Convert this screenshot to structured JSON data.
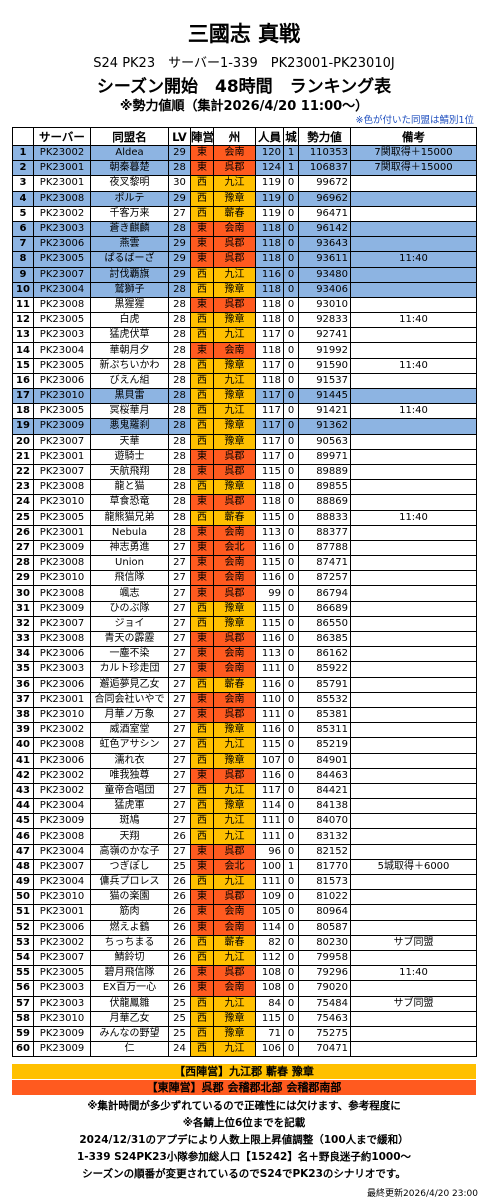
{
  "header": {
    "title": "三國志 真戦",
    "subtitle": "S24 PK23　サーバー1-339　PK23001-PK23010J",
    "heading": "シーズン開始　48時間　ランキング表",
    "order_note": "※勢力値順（集計2026/4/20 11:00～）",
    "color_note": "※色が付いた同盟は鯖別1位"
  },
  "camp_colors": {
    "東": "#ff5a1f",
    "西": "#ffc000"
  },
  "highlight_color": "#8db4e2",
  "table": {
    "columns": [
      "",
      "サーバー",
      "同盟名",
      "LV",
      "陣営",
      "州",
      "人員",
      "城",
      "勢力値",
      "備考"
    ],
    "rows": [
      {
        "cells": [
          1,
          "PK23002",
          "Aldea",
          29,
          "東",
          "会南",
          120,
          1,
          110353,
          "7関取得＋15000"
        ],
        "highlight": true
      },
      {
        "cells": [
          2,
          "PK23001",
          "朝秦暮楚",
          28,
          "東",
          "呉郡",
          124,
          1,
          106837,
          "7関取得＋15000"
        ],
        "highlight": true
      },
      {
        "cells": [
          3,
          "PK23001",
          "夜叉黎明",
          30,
          "西",
          "九江",
          119,
          0,
          99672
        ]
      },
      {
        "cells": [
          4,
          "PK23008",
          "ポルテ",
          29,
          "西",
          "豫章",
          119,
          0,
          96962
        ],
        "highlight": true
      },
      {
        "cells": [
          5,
          "PK23002",
          "千客万来",
          27,
          "西",
          "蘄春",
          119,
          0,
          96471
        ]
      },
      {
        "cells": [
          6,
          "PK23003",
          "蒼き麒麟",
          28,
          "東",
          "会南",
          118,
          0,
          96142
        ],
        "highlight": true
      },
      {
        "cells": [
          7,
          "PK23006",
          "燕雲",
          29,
          "東",
          "呉郡",
          118,
          0,
          93643
        ],
        "highlight": true
      },
      {
        "cells": [
          8,
          "PK23005",
          "ぱるばーざ",
          29,
          "東",
          "呉郡",
          118,
          0,
          93611,
          "11:40"
        ],
        "highlight": true
      },
      {
        "cells": [
          9,
          "PK23007",
          "討伐覇旗",
          29,
          "西",
          "九江",
          116,
          0,
          93480
        ],
        "highlight": true
      },
      {
        "cells": [
          10,
          "PK23004",
          "鷲獅子",
          28,
          "西",
          "豫章",
          118,
          0,
          93406
        ],
        "highlight": true
      },
      {
        "cells": [
          11,
          "PK23008",
          "黒猩猩",
          28,
          "東",
          "呉郡",
          118,
          0,
          93010
        ]
      },
      {
        "cells": [
          12,
          "PK23005",
          "白虎",
          28,
          "西",
          "豫章",
          118,
          0,
          92833,
          "11:40"
        ]
      },
      {
        "cells": [
          13,
          "PK23003",
          "猛虎伏草",
          28,
          "西",
          "九江",
          117,
          0,
          92741
        ]
      },
      {
        "cells": [
          14,
          "PK23004",
          "華朝月夕",
          28,
          "東",
          "会南",
          118,
          0,
          91992
        ]
      },
      {
        "cells": [
          15,
          "PK23005",
          "新ぷちいかわ",
          28,
          "西",
          "豫章",
          117,
          0,
          91590,
          "11:40"
        ]
      },
      {
        "cells": [
          16,
          "PK23006",
          "びえん組",
          28,
          "西",
          "九江",
          118,
          0,
          91537
        ]
      },
      {
        "cells": [
          17,
          "PK23010",
          "黒貝雷",
          28,
          "西",
          "豫章",
          117,
          0,
          91445
        ],
        "highlight": true
      },
      {
        "cells": [
          18,
          "PK23005",
          "冥桜華月",
          28,
          "西",
          "九江",
          117,
          0,
          91421,
          "11:40"
        ]
      },
      {
        "cells": [
          19,
          "PK23009",
          "悪鬼羅刹",
          28,
          "西",
          "豫章",
          117,
          0,
          91362
        ],
        "highlight": true
      },
      {
        "cells": [
          20,
          "PK23007",
          "天華",
          28,
          "西",
          "豫章",
          117,
          0,
          90563
        ]
      },
      {
        "cells": [
          21,
          "PK23001",
          "遊騎士",
          28,
          "東",
          "呉郡",
          117,
          0,
          89971
        ]
      },
      {
        "cells": [
          22,
          "PK23007",
          "天航飛翔",
          28,
          "東",
          "呉郡",
          115,
          0,
          89889
        ]
      },
      {
        "cells": [
          23,
          "PK23008",
          "龍と猫",
          28,
          "西",
          "豫章",
          118,
          0,
          89855
        ]
      },
      {
        "cells": [
          24,
          "PK23010",
          "草食恐竜",
          28,
          "東",
          "呉郡",
          118,
          0,
          88869
        ]
      },
      {
        "cells": [
          25,
          "PK23005",
          "龍熊猫兄弟",
          28,
          "西",
          "蘄春",
          115,
          0,
          88833,
          "11:40"
        ]
      },
      {
        "cells": [
          26,
          "PK23001",
          "Nebula",
          28,
          "東",
          "会南",
          113,
          0,
          88377
        ]
      },
      {
        "cells": [
          27,
          "PK23009",
          "神志勇進",
          27,
          "東",
          "会北",
          116,
          0,
          87788
        ]
      },
      {
        "cells": [
          28,
          "PK23008",
          "Union",
          27,
          "東",
          "会南",
          115,
          0,
          87471
        ]
      },
      {
        "cells": [
          29,
          "PK23010",
          "飛信隊",
          27,
          "東",
          "会南",
          116,
          0,
          87257
        ]
      },
      {
        "cells": [
          30,
          "PK23008",
          "颯志",
          27,
          "東",
          "呉郡",
          99,
          0,
          86794
        ]
      },
      {
        "cells": [
          31,
          "PK23009",
          "ひのぶ隊",
          27,
          "西",
          "豫章",
          115,
          0,
          86689
        ]
      },
      {
        "cells": [
          32,
          "PK23007",
          "ジョイ",
          27,
          "西",
          "豫章",
          115,
          0,
          86550
        ]
      },
      {
        "cells": [
          33,
          "PK23008",
          "青天の霹靂",
          27,
          "東",
          "呉郡",
          116,
          0,
          86385
        ]
      },
      {
        "cells": [
          34,
          "PK23006",
          "一塵不染",
          27,
          "東",
          "会南",
          113,
          0,
          86162
        ]
      },
      {
        "cells": [
          35,
          "PK23003",
          "カルト珍走団",
          27,
          "東",
          "会南",
          111,
          0,
          85922
        ]
      },
      {
        "cells": [
          36,
          "PK23006",
          "邂逅夢見乙女",
          27,
          "西",
          "蘄春",
          116,
          0,
          85791
        ]
      },
      {
        "cells": [
          37,
          "PK23001",
          "合同会社いやで",
          27,
          "東",
          "会南",
          110,
          0,
          85532
        ]
      },
      {
        "cells": [
          38,
          "PK23010",
          "月華ノ万象",
          27,
          "東",
          "呉郡",
          111,
          0,
          85381
        ]
      },
      {
        "cells": [
          39,
          "PK23002",
          "威酒室堂",
          27,
          "西",
          "豫章",
          116,
          0,
          85311
        ]
      },
      {
        "cells": [
          40,
          "PK23008",
          "虹色アサシン",
          27,
          "西",
          "九江",
          115,
          0,
          85219
        ]
      },
      {
        "cells": [
          41,
          "PK23006",
          "濡れ衣",
          27,
          "西",
          "豫章",
          107,
          0,
          84901
        ]
      },
      {
        "cells": [
          42,
          "PK23002",
          "唯我独尊",
          27,
          "東",
          "呉郡",
          116,
          0,
          84463
        ]
      },
      {
        "cells": [
          43,
          "PK23002",
          "童帝合唱団",
          27,
          "西",
          "九江",
          117,
          0,
          84421
        ]
      },
      {
        "cells": [
          44,
          "PK23004",
          "猛虎軍",
          27,
          "西",
          "豫章",
          114,
          0,
          84138
        ]
      },
      {
        "cells": [
          45,
          "PK23009",
          "斑鳩",
          27,
          "西",
          "九江",
          111,
          0,
          84070
        ]
      },
      {
        "cells": [
          46,
          "PK23008",
          "天翔",
          26,
          "西",
          "九江",
          111,
          0,
          83132
        ]
      },
      {
        "cells": [
          47,
          "PK23004",
          "高嶺のかな子",
          27,
          "東",
          "呉郡",
          96,
          0,
          82152
        ]
      },
      {
        "cells": [
          48,
          "PK23007",
          "つぎぽし",
          25,
          "東",
          "会北",
          100,
          1,
          81770,
          "5城取得＋6000"
        ]
      },
      {
        "cells": [
          49,
          "PK23004",
          "傭兵プロレス",
          26,
          "西",
          "九江",
          111,
          0,
          81573
        ]
      },
      {
        "cells": [
          50,
          "PK23010",
          "猫の楽園",
          26,
          "東",
          "呉郡",
          109,
          0,
          81022
        ]
      },
      {
        "cells": [
          51,
          "PK23001",
          "筋肉",
          26,
          "東",
          "会南",
          105,
          0,
          80964
        ]
      },
      {
        "cells": [
          52,
          "PK23006",
          "燃えよ鶴",
          26,
          "東",
          "会南",
          114,
          0,
          80587
        ]
      },
      {
        "cells": [
          53,
          "PK23002",
          "ちっちまる",
          26,
          "西",
          "蘄春",
          82,
          0,
          80230,
          "サブ同盟"
        ]
      },
      {
        "cells": [
          54,
          "PK23007",
          "鯖鈴切",
          26,
          "西",
          "九江",
          112,
          0,
          79958
        ]
      },
      {
        "cells": [
          55,
          "PK23005",
          "碧月飛信隊",
          26,
          "東",
          "呉郡",
          108,
          0,
          79296,
          "11:40"
        ]
      },
      {
        "cells": [
          56,
          "PK23003",
          "EX百万一心",
          26,
          "東",
          "会南",
          108,
          0,
          79020
        ]
      },
      {
        "cells": [
          57,
          "PK23003",
          "伏龍鳳雛",
          25,
          "西",
          "九江",
          84,
          0,
          75484,
          "サブ同盟"
        ]
      },
      {
        "cells": [
          58,
          "PK23010",
          "月華乙女",
          25,
          "西",
          "豫章",
          115,
          0,
          75463
        ]
      },
      {
        "cells": [
          59,
          "PK23009",
          "みんなの野望",
          25,
          "西",
          "豫章",
          71,
          0,
          75275
        ]
      },
      {
        "cells": [
          60,
          "PK23009",
          "仁",
          24,
          "西",
          "九江",
          106,
          0,
          70471
        ]
      }
    ]
  },
  "footer": {
    "west": "【西陣営】九江郡 蘄春 豫章",
    "east": "【東陣営】呉郡 会稽郡北部 会稽郡南部",
    "notes": [
      "※集計時間が多少ずれているので正確性には欠けます、参考程度に",
      "※各鯖上位6位までを記載",
      "2024/12/31のアプデにより人数上限上昇値調整（100人まで緩和）",
      "1-339 S24PK23小隊参加総人口【15242】名＋野良迷子約1000～",
      "シーズンの順番が変更されているのでS24でPK23のシナリオです。"
    ],
    "updated": "最終更新2026/4/20 23:00"
  }
}
